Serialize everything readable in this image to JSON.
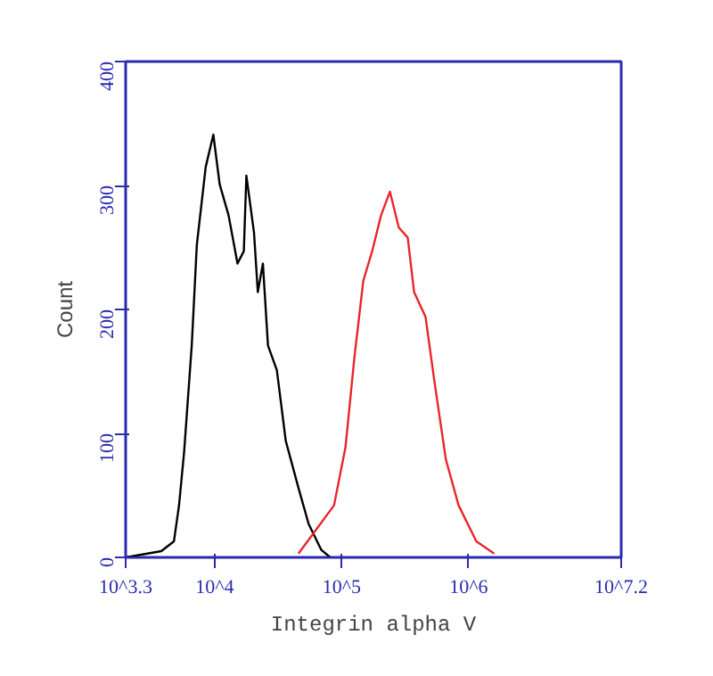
{
  "chart_data": {
    "type": "line",
    "xlabel": "Integrin alpha V",
    "ylabel": "Count",
    "log": "x",
    "xlim": [
      1995,
      15850000
    ],
    "xticks": [
      {
        "value": 1995,
        "label": "10^3.3"
      },
      {
        "value": 10000,
        "label": "10^4"
      },
      {
        "value": 100000,
        "label": "10^5"
      },
      {
        "value": 1000000,
        "label": "10^6"
      },
      {
        "value": 15850000,
        "label": "10^7.2"
      }
    ],
    "ylim": [
      0,
      400
    ],
    "yticks": [
      0,
      100,
      200,
      300,
      400
    ],
    "grid": false,
    "marker": "none",
    "line_style": "solid",
    "series": [
      {
        "color": "#000000",
        "x": [
          1995,
          3802,
          4786,
          5248,
          5754,
          6607,
          7244,
          8511,
          9772,
          10960,
          12880,
          15140,
          16980,
          17780,
          20420,
          21880,
          23990,
          26300,
          30900,
          36310,
          45710,
          54950,
          69180,
          81280
        ],
        "values": [
          0,
          5,
          13,
          42,
          85,
          171,
          252,
          315,
          341,
          301,
          276,
          237,
          247,
          308,
          262,
          214,
          237,
          171,
          151,
          94,
          56,
          27,
          6,
          0
        ]
      },
      {
        "color": "#e8262a",
        "x": [
          45710,
          87100,
          107200,
          125900,
          147900,
          173800,
          204200,
          239900,
          281800,
          331100,
          371500,
          457100,
          537000,
          660700,
          831800,
          1148000,
          1585000
        ],
        "values": [
          3,
          42,
          89,
          161,
          223,
          247,
          276,
          295,
          266,
          258,
          214,
          194,
          142,
          79,
          42,
          13,
          3
        ]
      }
    ]
  }
}
